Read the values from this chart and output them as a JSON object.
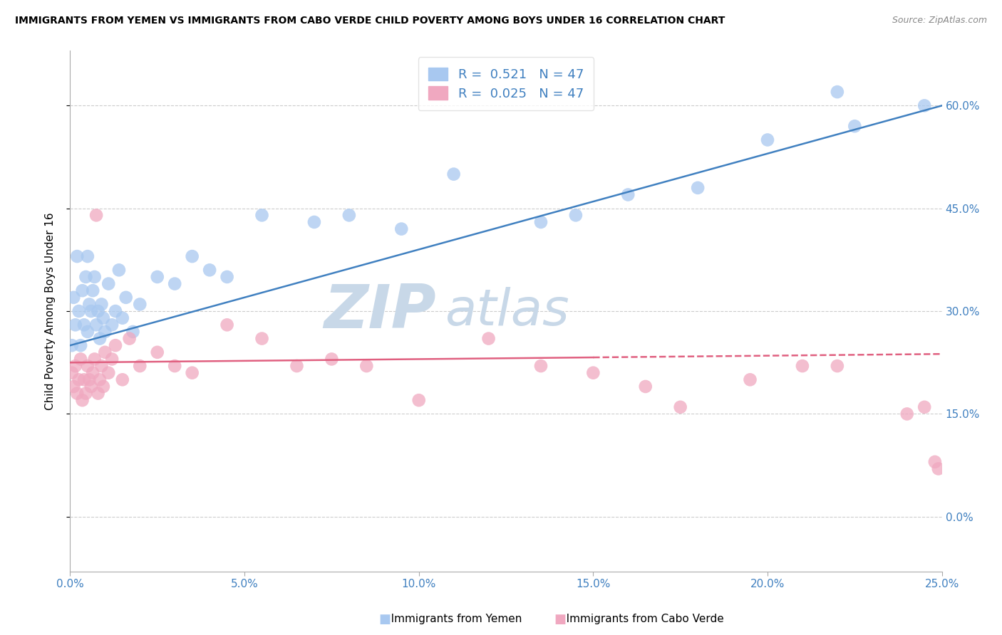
{
  "title": "IMMIGRANTS FROM YEMEN VS IMMIGRANTS FROM CABO VERDE CHILD POVERTY AMONG BOYS UNDER 16 CORRELATION CHART",
  "source": "Source: ZipAtlas.com",
  "ylabel": "Child Poverty Among Boys Under 16",
  "xlim": [
    0.0,
    25.0
  ],
  "ylim": [
    -8.0,
    68.0
  ],
  "R_yemen": 0.521,
  "R_cabo": 0.025,
  "N": 47,
  "color_yemen": "#A8C8F0",
  "color_cabo": "#F0A8C0",
  "trendline_yemen": "#4080C0",
  "trendline_cabo": "#E06080",
  "watermark_zip": "ZIP",
  "watermark_atlas": "atlas",
  "watermark_color": "#C8D8E8",
  "yemen_x": [
    0.05,
    0.1,
    0.15,
    0.2,
    0.25,
    0.3,
    0.35,
    0.4,
    0.45,
    0.5,
    0.5,
    0.55,
    0.6,
    0.65,
    0.7,
    0.75,
    0.8,
    0.85,
    0.9,
    0.95,
    1.0,
    1.1,
    1.2,
    1.3,
    1.4,
    1.5,
    1.6,
    1.8,
    2.0,
    2.5,
    3.0,
    3.5,
    4.0,
    4.5,
    5.5,
    7.0,
    8.0,
    9.5,
    11.0,
    13.5,
    14.5,
    16.0,
    18.0,
    20.0,
    22.0,
    22.5,
    24.5
  ],
  "yemen_y": [
    25,
    32,
    28,
    38,
    30,
    25,
    33,
    28,
    35,
    27,
    38,
    31,
    30,
    33,
    35,
    28,
    30,
    26,
    31,
    29,
    27,
    34,
    28,
    30,
    36,
    29,
    32,
    27,
    31,
    35,
    34,
    38,
    36,
    35,
    44,
    43,
    44,
    42,
    50,
    43,
    44,
    47,
    48,
    55,
    62,
    57,
    60
  ],
  "cabo_x": [
    0.05,
    0.1,
    0.15,
    0.2,
    0.25,
    0.3,
    0.35,
    0.4,
    0.45,
    0.5,
    0.55,
    0.6,
    0.65,
    0.7,
    0.75,
    0.8,
    0.85,
    0.9,
    0.95,
    1.0,
    1.1,
    1.2,
    1.3,
    1.5,
    1.7,
    2.0,
    2.5,
    3.0,
    3.5,
    4.5,
    5.5,
    6.5,
    7.5,
    8.5,
    10.0,
    12.0,
    13.5,
    15.0,
    16.5,
    17.5,
    19.5,
    21.0,
    22.0,
    24.0,
    24.5,
    24.8,
    24.9
  ],
  "cabo_y": [
    21,
    19,
    22,
    18,
    20,
    23,
    17,
    20,
    18,
    22,
    20,
    19,
    21,
    23,
    44,
    18,
    20,
    22,
    19,
    24,
    21,
    23,
    25,
    20,
    26,
    22,
    24,
    22,
    21,
    28,
    26,
    22,
    23,
    22,
    17,
    26,
    22,
    21,
    19,
    16,
    20,
    22,
    22,
    15,
    16,
    8,
    7
  ],
  "ylabel_ticks": [
    0,
    15,
    30,
    45,
    60
  ],
  "xtick_vals": [
    0,
    5,
    10,
    15,
    20,
    25
  ]
}
